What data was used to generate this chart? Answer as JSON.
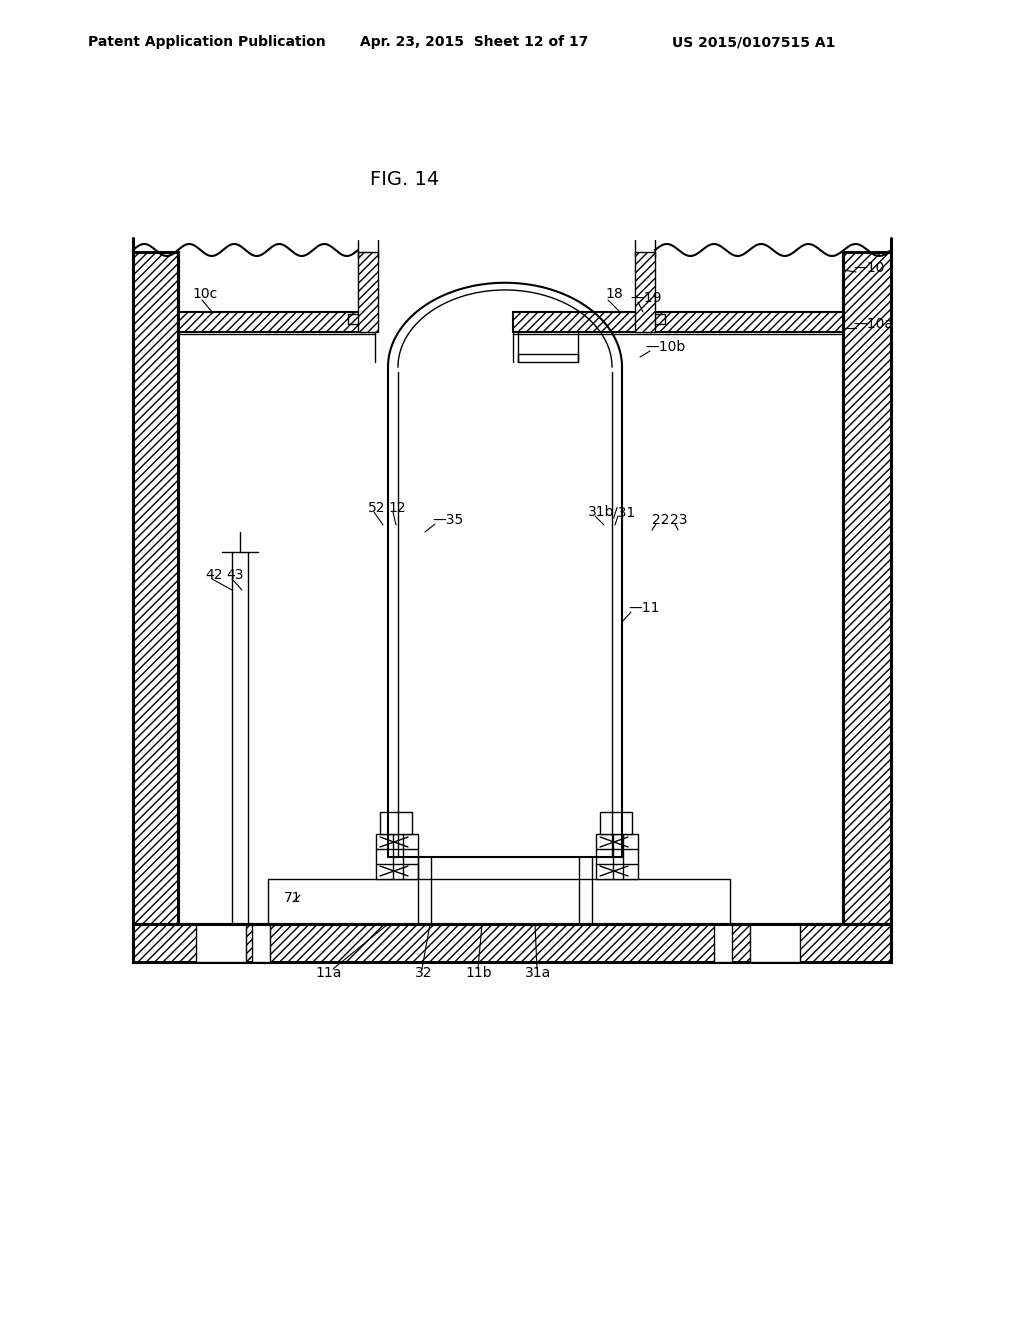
{
  "title": "FIG. 14",
  "header_left": "Patent Application Publication",
  "header_mid": "Apr. 23, 2015  Sheet 12 of 17",
  "header_right": "US 2015/0107515 A1",
  "bg_color": "#ffffff",
  "line_color": "#000000",
  "fig_label_fontsize": 14,
  "header_fontsize": 10,
  "annotation_fontsize": 10
}
